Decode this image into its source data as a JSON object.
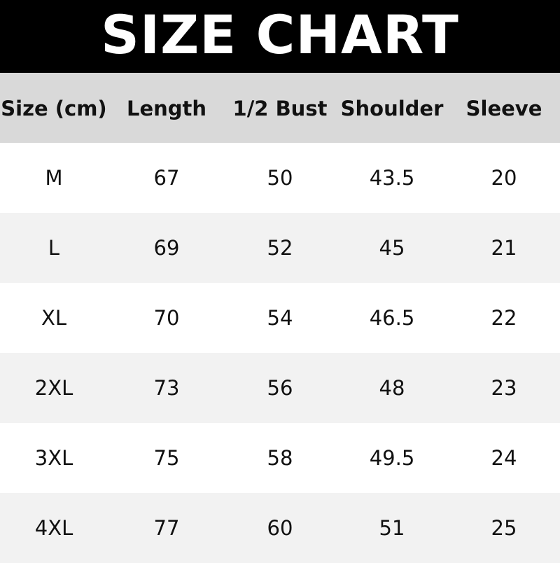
{
  "title": "SIZE CHART",
  "headers": [
    "Size (cm)",
    "Length",
    "1/2 Bust",
    "Shoulder",
    "Sleeve"
  ],
  "rows": [
    [
      "M",
      "67",
      "50",
      "43.5",
      "20"
    ],
    [
      "L",
      "69",
      "52",
      "45",
      "21"
    ],
    [
      "XL",
      "70",
      "54",
      "46.5",
      "22"
    ],
    [
      "2XL",
      "73",
      "56",
      "48",
      "23"
    ],
    [
      "3XL",
      "75",
      "58",
      "49.5",
      "24"
    ],
    [
      "4XL",
      "77",
      "60",
      "51",
      "25"
    ]
  ],
  "colors": {
    "title_bg": "#000000",
    "header_bg": "#d9d9d9",
    "row_alt_bg": "#f2f2f2"
  }
}
